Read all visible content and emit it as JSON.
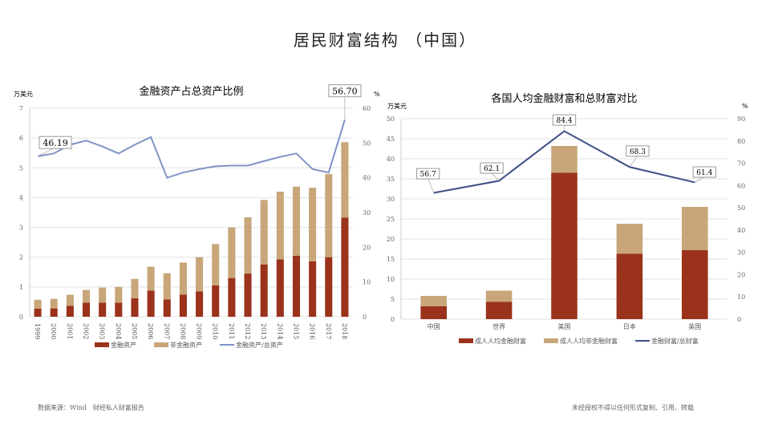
{
  "title": "居民财富结构 （中国）",
  "footer": {
    "source": "数据来源：Wind　财经私人财富报告",
    "notice": "未经授权不得以任何形式复制、引用、转载"
  },
  "colors": {
    "financial": "#9b321b",
    "nonfinancial": "#c8a67a",
    "ratio": "#7f93c6",
    "ratio_right": "#3d4f84",
    "grid": "#e2e2e2"
  },
  "chart_data": [
    {
      "type": "bar",
      "stacked": true,
      "title": "金融资产占总资产比例",
      "ylabel": "万美元",
      "y2label": "%",
      "ylim": [
        0,
        7
      ],
      "y2lim": [
        0,
        60
      ],
      "yticks": [
        "0",
        "1",
        "2",
        "3",
        "4",
        "5",
        "6",
        "7"
      ],
      "y2ticks": [
        "0",
        "10",
        "20",
        "30",
        "40",
        "50",
        "60"
      ],
      "grid": true,
      "legend": "bottom",
      "categories": [
        "1999",
        "2000",
        "2001",
        "2002",
        "2003",
        "2004",
        "2005",
        "2006",
        "2007",
        "2008",
        "2009",
        "2010",
        "2011",
        "2012",
        "2013",
        "2014",
        "2015",
        "2016",
        "2017",
        "2018"
      ],
      "series": [
        {
          "name": "金融资产",
          "type": "bar",
          "values": [
            0.27,
            0.28,
            0.37,
            0.47,
            0.47,
            0.47,
            0.62,
            0.88,
            0.58,
            0.74,
            0.85,
            1.05,
            1.3,
            1.45,
            1.75,
            1.93,
            2.05,
            1.86,
            2.0,
            3.33
          ]
        },
        {
          "name": "非金融资产",
          "type": "bar",
          "values": [
            0.3,
            0.32,
            0.37,
            0.43,
            0.51,
            0.53,
            0.65,
            0.8,
            0.88,
            1.08,
            1.15,
            1.39,
            1.7,
            1.89,
            2.17,
            2.27,
            2.32,
            2.47,
            2.79,
            2.53
          ]
        },
        {
          "name": "金融资产/总资产",
          "type": "line",
          "axis": "right",
          "values": [
            46.19,
            47.0,
            49.5,
            50.7,
            49.0,
            47.0,
            49.5,
            51.7,
            40.0,
            41.5,
            42.5,
            43.3,
            43.5,
            43.5,
            44.8,
            46.0,
            47.0,
            42.5,
            41.5,
            56.7
          ]
        }
      ],
      "annotations": [
        "46.19",
        "56.70"
      ]
    },
    {
      "type": "bar",
      "stacked": true,
      "title": "各国人均金融财富和总财富对比",
      "ylabel": "万美元",
      "y2label": "%",
      "ylim": [
        0,
        50
      ],
      "y2lim": [
        0,
        90
      ],
      "yticks": [
        "0",
        "5",
        "10",
        "15",
        "20",
        "25",
        "30",
        "35",
        "40",
        "45",
        "50"
      ],
      "y2ticks": [
        "0",
        "10",
        "20",
        "30",
        "40",
        "50",
        "60",
        "70",
        "80",
        "90"
      ],
      "grid": true,
      "legend": "bottom",
      "categories": [
        "中国",
        "世界",
        "美国",
        "日本",
        "英国"
      ],
      "series": [
        {
          "name": "成人人均金融财富",
          "type": "bar",
          "values": [
            3.2,
            4.3,
            36.5,
            16.3,
            17.2
          ]
        },
        {
          "name": "成人人均非金融财富",
          "type": "bar",
          "values": [
            2.6,
            2.8,
            6.7,
            7.5,
            10.8
          ]
        },
        {
          "name": "金融财富/总财富",
          "type": "line",
          "axis": "right",
          "values": [
            56.7,
            62.1,
            84.4,
            68.3,
            61.4
          ]
        }
      ],
      "annotations": [
        "56.7",
        "62.1",
        "84.4",
        "68.3",
        "61.4"
      ]
    }
  ]
}
